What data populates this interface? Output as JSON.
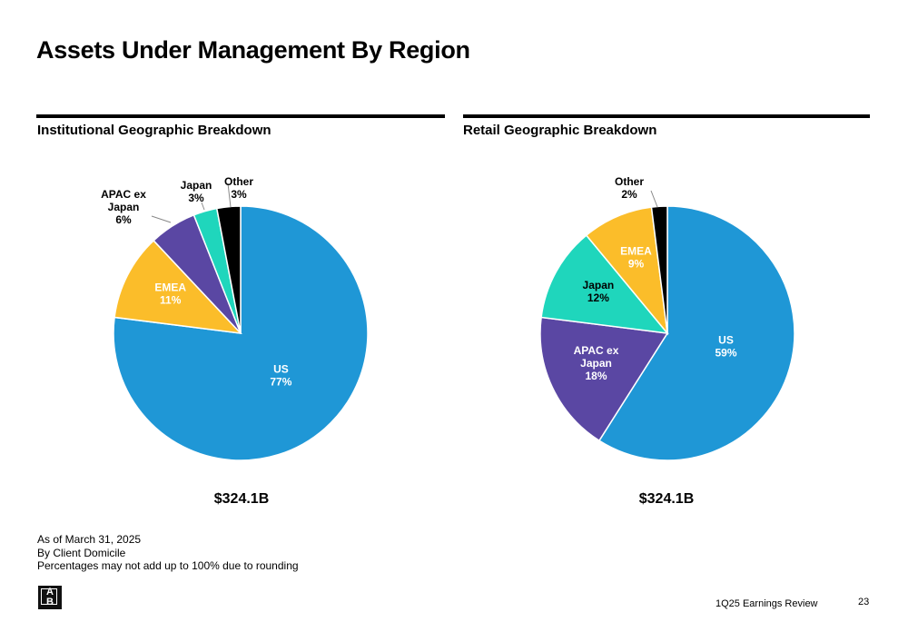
{
  "page": {
    "title": "Assets Under Management By Region",
    "footer_text": "1Q25 Earnings Review",
    "page_number": "23",
    "logo_text": [
      "A",
      "B"
    ]
  },
  "footnotes": [
    "As of March 31, 2025",
    "By Client Domicile",
    "Percentages may not add up to 100% due to rounding"
  ],
  "chart_data": [
    {
      "type": "pie",
      "title": "Institutional Geographic Breakdown",
      "total_label": "$324.1B",
      "slices": [
        {
          "label": [
            "US"
          ],
          "pct_label": "77%",
          "value": 77,
          "color": "#1f97d6",
          "label_color": "#ffffff",
          "label_pos": "inside"
        },
        {
          "label": [
            "EMEA"
          ],
          "pct_label": "11%",
          "value": 11,
          "color": "#fbbd2a",
          "label_color": "#ffffff",
          "label_pos": "inside"
        },
        {
          "label": [
            "APAC ex",
            "Japan"
          ],
          "pct_label": "6%",
          "value": 6,
          "color": "#5a47a3",
          "label_color": "#000000",
          "label_pos": "outside"
        },
        {
          "label": [
            "Japan"
          ],
          "pct_label": "3%",
          "value": 3,
          "color": "#1fd6bc",
          "label_color": "#000000",
          "label_pos": "outside"
        },
        {
          "label": [
            "Other"
          ],
          "pct_label": "3%",
          "value": 3,
          "color": "#000000",
          "label_color": "#000000",
          "label_pos": "outside"
        }
      ]
    },
    {
      "type": "pie",
      "title": "Retail Geographic Breakdown",
      "total_label": "$324.1B",
      "slices": [
        {
          "label": [
            "US"
          ],
          "pct_label": "59%",
          "value": 59,
          "color": "#1f97d6",
          "label_color": "#ffffff",
          "label_pos": "inside"
        },
        {
          "label": [
            "APAC ex",
            "Japan"
          ],
          "pct_label": "18%",
          "value": 18,
          "color": "#5a47a3",
          "label_color": "#ffffff",
          "label_pos": "inside"
        },
        {
          "label": [
            "Japan"
          ],
          "pct_label": "12%",
          "value": 12,
          "color": "#1fd6bc",
          "label_color": "#000000",
          "label_pos": "inside"
        },
        {
          "label": [
            "EMEA"
          ],
          "pct_label": "9%",
          "value": 9,
          "color": "#fbbd2a",
          "label_color": "#ffffff",
          "label_pos": "inside"
        },
        {
          "label": [
            "Other"
          ],
          "pct_label": "2%",
          "value": 2,
          "color": "#000000",
          "label_color": "#000000",
          "label_pos": "outside"
        }
      ]
    }
  ]
}
